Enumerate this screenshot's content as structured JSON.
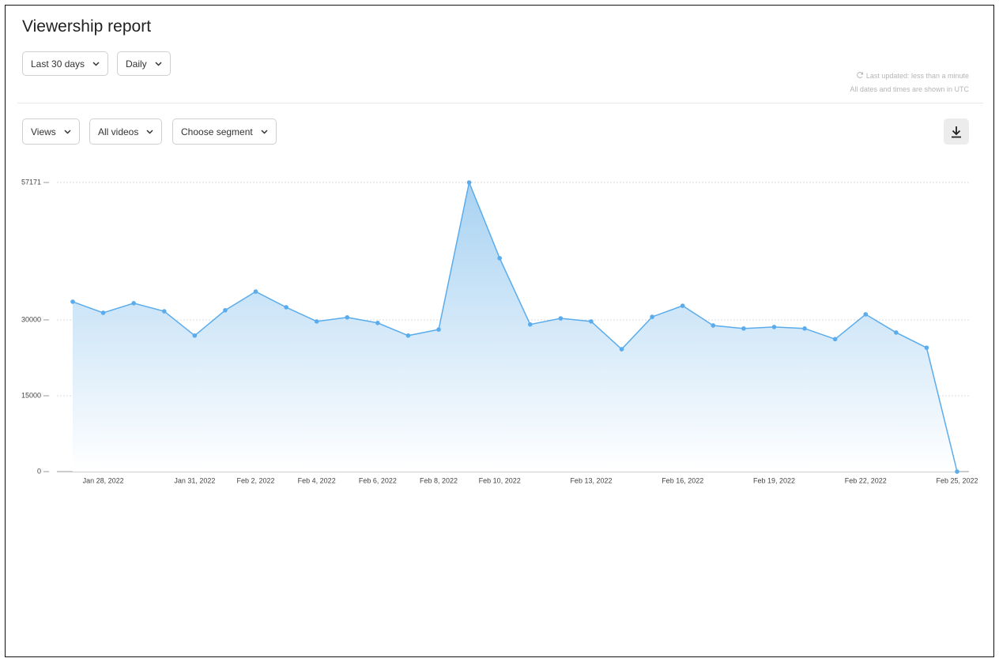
{
  "header": {
    "title": "Viewership report",
    "filters": [
      "Last 30 days",
      "Daily"
    ],
    "last_updated": "Last updated: less than a minute",
    "timezone_note": "All dates and times are shown in UTC"
  },
  "toolbar": {
    "filters": [
      "Views",
      "All videos",
      "Choose segment"
    ]
  },
  "chart_data": {
    "type": "line",
    "area": true,
    "color": "#5aacec",
    "grid": true,
    "categories": [
      null,
      "Jan 28, 2022",
      null,
      null,
      "Jan 31, 2022",
      null,
      "Feb 2, 2022",
      null,
      "Feb 4, 2022",
      null,
      "Feb 6, 2022",
      null,
      "Feb 8, 2022",
      null,
      "Feb 10, 2022",
      null,
      null,
      "Feb 13, 2022",
      null,
      null,
      "Feb 16, 2022",
      null,
      null,
      "Feb 19, 2022",
      null,
      null,
      "Feb 22, 2022",
      null,
      null,
      "Feb 25, 2022"
    ],
    "values": [
      33600,
      31400,
      33300,
      31700,
      26900,
      31900,
      35600,
      32500,
      29700,
      30500,
      29400,
      26900,
      28100,
      57171,
      42200,
      29100,
      30300,
      29700,
      24200,
      30600,
      32800,
      28900,
      28300,
      28600,
      28300,
      26200,
      31100,
      27500,
      24500,
      0
    ],
    "ylim": [
      0,
      57171
    ],
    "yticks": [
      0,
      15000,
      30000,
      57171
    ]
  }
}
